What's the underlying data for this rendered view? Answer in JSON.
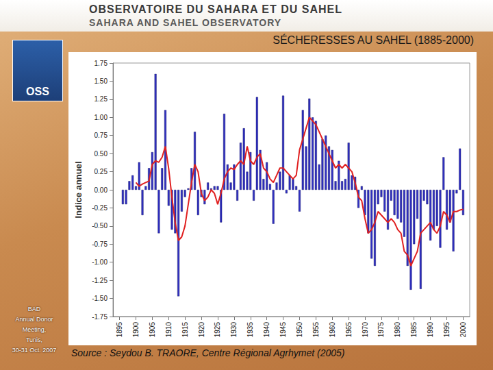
{
  "header": {
    "line1": "OBSERVATOIRE DU SAHARA ET DU SAHEL",
    "line2": "SAHARA AND SAHEL OBSERVATORY",
    "logo": "OSS"
  },
  "side_note": [
    "BAD",
    "Annual Donor",
    "Meeting,",
    "Tunis,",
    "30-31 Oct. 2007"
  ],
  "source": "Source : Seydou B. TRAORE, Centre Régional Agrhymet (2005)",
  "chart_data": {
    "type": "bar",
    "title": "SÉCHERESSES AU SAHEL (1885-2000)",
    "y_label": "Indice annuel",
    "x": [
      1896,
      1897,
      1898,
      1899,
      1900,
      1901,
      1902,
      1903,
      1904,
      1905,
      1906,
      1907,
      1908,
      1909,
      1910,
      1911,
      1912,
      1913,
      1914,
      1915,
      1916,
      1917,
      1918,
      1919,
      1920,
      1921,
      1922,
      1923,
      1924,
      1925,
      1926,
      1927,
      1928,
      1929,
      1930,
      1931,
      1932,
      1933,
      1934,
      1935,
      1936,
      1937,
      1938,
      1939,
      1940,
      1941,
      1942,
      1943,
      1944,
      1945,
      1946,
      1947,
      1948,
      1949,
      1950,
      1951,
      1952,
      1953,
      1954,
      1955,
      1956,
      1957,
      1958,
      1959,
      1960,
      1961,
      1962,
      1963,
      1964,
      1965,
      1966,
      1967,
      1968,
      1969,
      1970,
      1971,
      1972,
      1973,
      1974,
      1975,
      1976,
      1977,
      1978,
      1979,
      1980,
      1981,
      1982,
      1983,
      1984,
      1985,
      1986,
      1987,
      1988,
      1989,
      1990,
      1991,
      1992,
      1993,
      1994,
      1995,
      1996,
      1997,
      1998,
      1999,
      2000
    ],
    "series": [
      {
        "type": "bar",
        "color": "#3030c0",
        "values": [
          -0.2,
          -0.2,
          0.12,
          0.2,
          0.05,
          0.38,
          -0.35,
          0.05,
          0.3,
          0.52,
          1.6,
          -0.6,
          0.3,
          1.1,
          -0.22,
          -0.55,
          -0.6,
          -1.47,
          -0.3,
          -0.1,
          0.02,
          0.3,
          0.8,
          -0.35,
          -0.1,
          -0.2,
          0.1,
          0.02,
          0.05,
          0.05,
          -0.45,
          1.05,
          0.35,
          0.1,
          0.35,
          -0.15,
          0.65,
          0.85,
          0.25,
          0.52,
          -0.15,
          1.28,
          0.55,
          0.15,
          0.38,
          0.08,
          -0.47,
          0.1,
          0.25,
          1.3,
          -0.05,
          0.2,
          0.15,
          0.05,
          -0.3,
          1.1,
          0.6,
          1.26,
          1.0,
          0.95,
          0.35,
          0.7,
          0.75,
          0.6,
          0.55,
          0.12,
          0.4,
          0.12,
          0.15,
          0.65,
          0.2,
          0.18,
          -0.25,
          0.05,
          -0.35,
          -0.6,
          -0.95,
          -1.05,
          -0.2,
          -0.1,
          -0.3,
          -0.55,
          -0.15,
          -0.35,
          -0.4,
          -0.45,
          -0.65,
          -1.05,
          -1.38,
          -0.75,
          -0.4,
          -1.37,
          -0.15,
          -0.2,
          -0.7,
          -0.55,
          -0.5,
          -0.8,
          0.45,
          -0.55,
          -0.45,
          -0.85,
          -0.05,
          0.57,
          -0.35
        ]
      },
      {
        "type": "line",
        "color": "#e02020",
        "values": [
          null,
          null,
          null,
          null,
          0.1,
          0.05,
          0.08,
          0.1,
          0.12,
          0.35,
          0.4,
          0.38,
          0.45,
          0.6,
          0.3,
          -0.1,
          -0.45,
          -0.7,
          -0.65,
          -0.5,
          -0.2,
          0.1,
          0.35,
          0.25,
          -0.05,
          -0.15,
          -0.1,
          0.0,
          -0.05,
          -0.2,
          -0.05,
          0.15,
          0.25,
          0.3,
          0.28,
          0.35,
          0.4,
          0.35,
          0.6,
          0.4,
          0.35,
          0.45,
          0.5,
          0.3,
          0.25,
          0.15,
          0.1,
          0.2,
          0.3,
          0.3,
          0.25,
          0.2,
          0.15,
          0.2,
          0.55,
          0.7,
          0.85,
          1.0,
          0.95,
          0.9,
          0.8,
          0.7,
          0.6,
          0.5,
          0.4,
          0.3,
          0.35,
          0.3,
          0.35,
          0.3,
          0.25,
          0.1,
          -0.1,
          -0.15,
          -0.4,
          -0.6,
          -0.55,
          -0.45,
          -0.3,
          -0.35,
          -0.4,
          -0.45,
          -0.4,
          -0.45,
          -0.55,
          -0.6,
          -0.85,
          -0.9,
          -1.05,
          -0.95,
          -0.85,
          -0.6,
          -0.55,
          -0.5,
          -0.45,
          -0.55,
          -0.6,
          -0.5,
          -0.3,
          -0.35,
          -0.45,
          -0.3,
          -0.3,
          -0.28,
          -0.27
        ]
      }
    ],
    "xlim": [
      1893,
      2002
    ],
    "xticks": [
      1895,
      1900,
      1905,
      1910,
      1915,
      1920,
      1925,
      1930,
      1935,
      1940,
      1945,
      1950,
      1955,
      1960,
      1965,
      1970,
      1975,
      1980,
      1985,
      1990,
      1995,
      2000
    ],
    "ylim": [
      -1.75,
      1.75
    ],
    "yticks": [
      1.75,
      {
        "value": 1.5,
        "label": "1.50"
      },
      1.25,
      {
        "value": 1,
        "label": "1.00"
      },
      0.75,
      {
        "value": 0.5,
        "label": "0.50"
      },
      0.25,
      {
        "value": 0,
        "label": "0.00"
      },
      -0.25,
      {
        "value": -0.5,
        "label": "-0.50"
      },
      -0.75,
      {
        "value": -1,
        "label": "-1.00"
      },
      -1.25,
      {
        "value": -1.5,
        "label": "-1.50"
      },
      -1.75
    ],
    "grid": false
  }
}
